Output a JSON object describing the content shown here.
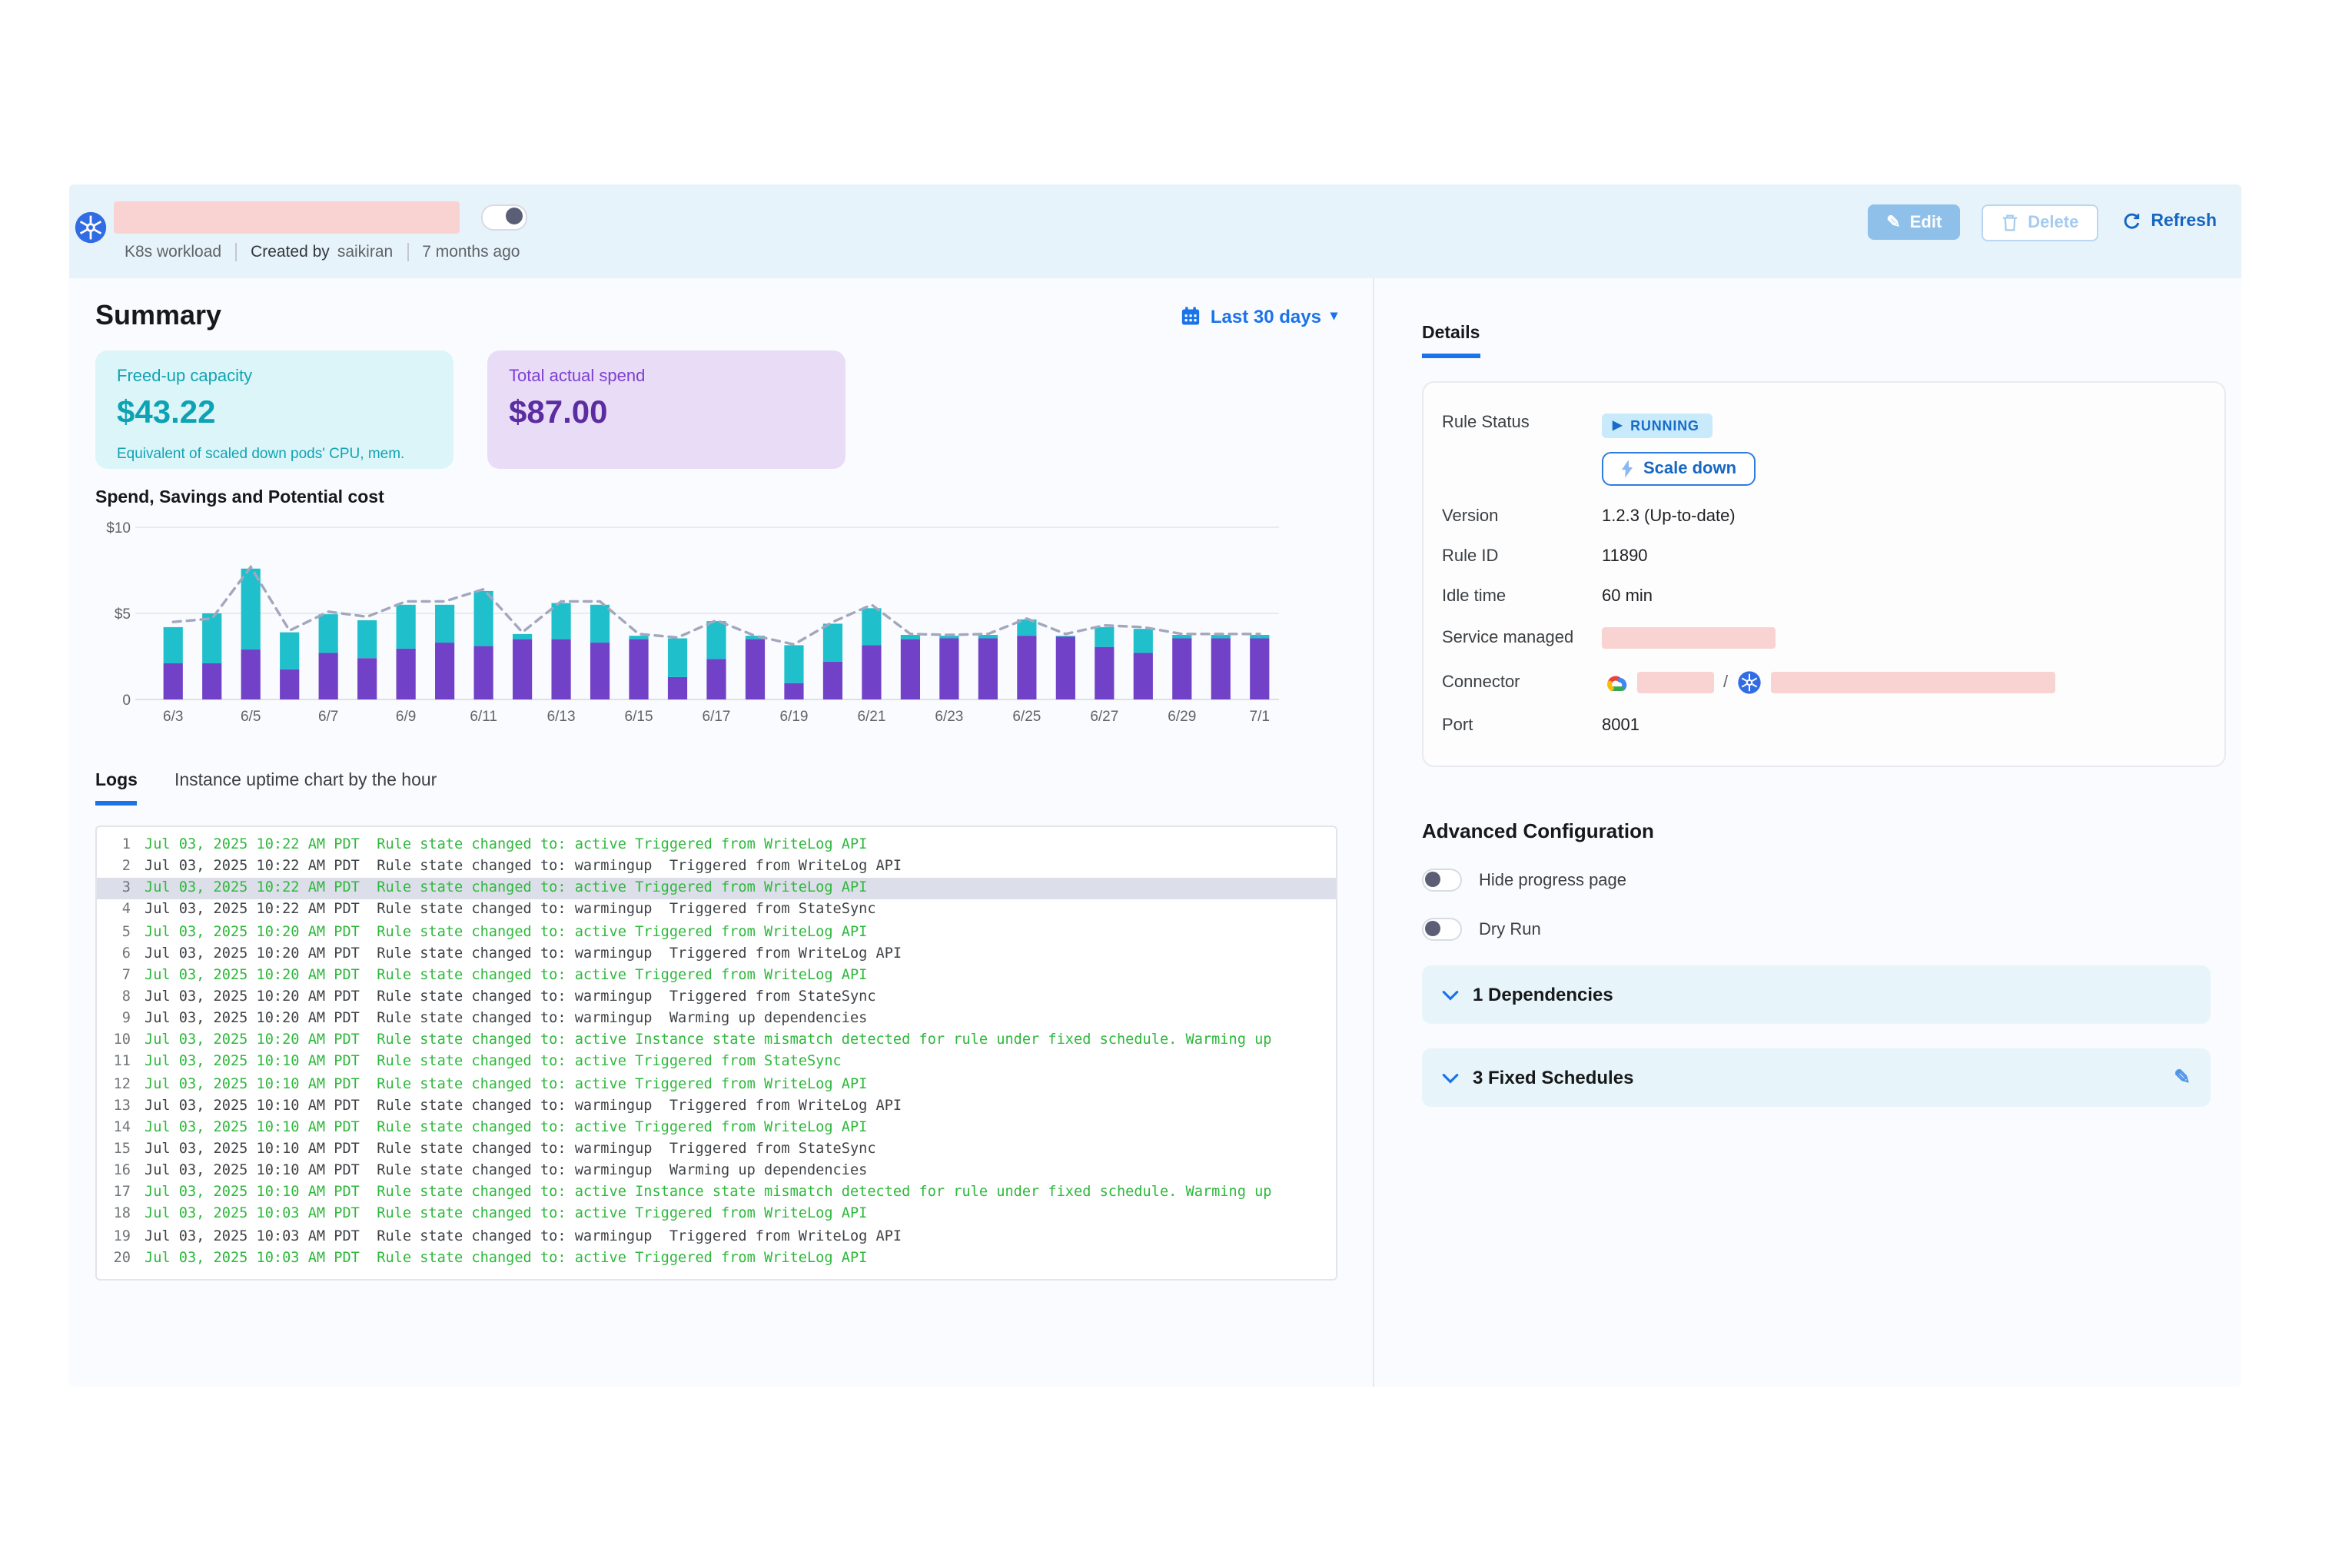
{
  "header": {
    "workload_type": "K8s workload",
    "created_by_label": "Created by",
    "created_by": "saikiran",
    "created_ago": "7 months ago",
    "edit_label": "Edit",
    "delete_label": "Delete",
    "refresh_label": "Refresh"
  },
  "summary": {
    "title": "Summary",
    "date_range": "Last 30 days",
    "cards": [
      {
        "label": "Freed-up capacity",
        "value": "$43.22",
        "caption": "Equivalent of scaled down pods' CPU, mem."
      },
      {
        "label": "Total actual spend",
        "value": "$87.00",
        "caption": ""
      }
    ]
  },
  "chart_data": {
    "type": "bar",
    "stacked": true,
    "title": "Spend, Savings and Potential cost",
    "categories": [
      "6/3",
      "6/4",
      "6/5",
      "6/6",
      "6/7",
      "6/8",
      "6/9",
      "6/10",
      "6/11",
      "6/12",
      "6/13",
      "6/14",
      "6/15",
      "6/16",
      "6/17",
      "6/18",
      "6/19",
      "6/20",
      "6/21",
      "6/22",
      "6/23",
      "6/24",
      "6/25",
      "6/26",
      "6/27",
      "6/28",
      "6/29",
      "6/30",
      "7/1"
    ],
    "x_tick_labels_shown": [
      "6/3",
      "6/5",
      "6/7",
      "6/9",
      "6/11",
      "6/13",
      "6/15",
      "6/17",
      "6/19",
      "6/21",
      "6/23",
      "6/25",
      "6/27",
      "6/29",
      "7/1"
    ],
    "series": [
      {
        "name": "Spend",
        "type": "bar",
        "color": "#7141c8",
        "values": [
          2.1,
          2.1,
          2.9,
          1.75,
          2.7,
          2.4,
          2.95,
          3.3,
          3.1,
          3.5,
          3.5,
          3.3,
          3.5,
          1.3,
          2.35,
          3.5,
          0.95,
          2.2,
          3.15,
          3.5,
          3.55,
          3.55,
          3.7,
          3.65,
          3.05,
          2.7,
          3.55,
          3.55,
          3.55
        ]
      },
      {
        "name": "Savings",
        "type": "bar",
        "color": "#1fc0cc",
        "values": [
          2.1,
          2.9,
          4.7,
          2.15,
          2.25,
          2.2,
          2.55,
          2.2,
          3.2,
          0.3,
          2.1,
          2.2,
          0.2,
          2.25,
          2.2,
          0.2,
          2.2,
          2.2,
          2.15,
          0.25,
          0.15,
          0.2,
          0.95,
          0.05,
          1.15,
          1.4,
          0.2,
          0.2,
          0.2
        ]
      },
      {
        "name": "Potential cost",
        "type": "line",
        "style": "dashed",
        "color": "#a3a7bd",
        "values": [
          4.5,
          4.7,
          7.7,
          4.0,
          5.1,
          4.8,
          5.7,
          5.7,
          6.4,
          3.9,
          5.7,
          5.7,
          3.8,
          3.6,
          4.6,
          3.7,
          3.2,
          4.5,
          5.5,
          3.8,
          3.75,
          3.8,
          4.7,
          3.8,
          4.3,
          4.2,
          3.8,
          3.8,
          3.8
        ]
      }
    ],
    "ylim": [
      0,
      10
    ],
    "y_ticks": [
      "0",
      "$5",
      "$10"
    ],
    "grid": true,
    "legend": "none"
  },
  "tabs": {
    "logs": "Logs",
    "uptime": "Instance uptime chart by the hour"
  },
  "logs": [
    {
      "n": 1,
      "state": "active",
      "highlighted": false,
      "text": "Jul 03, 2025 10:22 AM PDT  Rule state changed to: active Triggered from WriteLog API"
    },
    {
      "n": 2,
      "state": "warmingup",
      "highlighted": false,
      "text": "Jul 03, 2025 10:22 AM PDT  Rule state changed to: warmingup  Triggered from WriteLog API"
    },
    {
      "n": 3,
      "state": "active",
      "highlighted": true,
      "text": "Jul 03, 2025 10:22 AM PDT  Rule state changed to: active Triggered from WriteLog API"
    },
    {
      "n": 4,
      "state": "warmingup",
      "highlighted": false,
      "text": "Jul 03, 2025 10:22 AM PDT  Rule state changed to: warmingup  Triggered from StateSync"
    },
    {
      "n": 5,
      "state": "active",
      "highlighted": false,
      "text": "Jul 03, 2025 10:20 AM PDT  Rule state changed to: active Triggered from WriteLog API"
    },
    {
      "n": 6,
      "state": "warmingup",
      "highlighted": false,
      "text": "Jul 03, 2025 10:20 AM PDT  Rule state changed to: warmingup  Triggered from WriteLog API"
    },
    {
      "n": 7,
      "state": "active",
      "highlighted": false,
      "text": "Jul 03, 2025 10:20 AM PDT  Rule state changed to: active Triggered from WriteLog API"
    },
    {
      "n": 8,
      "state": "warmingup",
      "highlighted": false,
      "text": "Jul 03, 2025 10:20 AM PDT  Rule state changed to: warmingup  Triggered from StateSync"
    },
    {
      "n": 9,
      "state": "warmingup",
      "highlighted": false,
      "text": "Jul 03, 2025 10:20 AM PDT  Rule state changed to: warmingup  Warming up dependencies"
    },
    {
      "n": 10,
      "state": "active",
      "highlighted": false,
      "text": "Jul 03, 2025 10:20 AM PDT  Rule state changed to: active Instance state mismatch detected for rule under fixed schedule. Warming up"
    },
    {
      "n": 11,
      "state": "active",
      "highlighted": false,
      "text": "Jul 03, 2025 10:10 AM PDT  Rule state changed to: active Triggered from StateSync"
    },
    {
      "n": 12,
      "state": "active",
      "highlighted": false,
      "text": "Jul 03, 2025 10:10 AM PDT  Rule state changed to: active Triggered from WriteLog API"
    },
    {
      "n": 13,
      "state": "warmingup",
      "highlighted": false,
      "text": "Jul 03, 2025 10:10 AM PDT  Rule state changed to: warmingup  Triggered from WriteLog API"
    },
    {
      "n": 14,
      "state": "active",
      "highlighted": false,
      "text": "Jul 03, 2025 10:10 AM PDT  Rule state changed to: active Triggered from WriteLog API"
    },
    {
      "n": 15,
      "state": "warmingup",
      "highlighted": false,
      "text": "Jul 03, 2025 10:10 AM PDT  Rule state changed to: warmingup  Triggered from StateSync"
    },
    {
      "n": 16,
      "state": "warmingup",
      "highlighted": false,
      "text": "Jul 03, 2025 10:10 AM PDT  Rule state changed to: warmingup  Warming up dependencies"
    },
    {
      "n": 17,
      "state": "active",
      "highlighted": false,
      "text": "Jul 03, 2025 10:10 AM PDT  Rule state changed to: active Instance state mismatch detected for rule under fixed schedule. Warming up"
    },
    {
      "n": 18,
      "state": "active",
      "highlighted": false,
      "text": "Jul 03, 2025 10:03 AM PDT  Rule state changed to: active Triggered from WriteLog API"
    },
    {
      "n": 19,
      "state": "warmingup",
      "highlighted": false,
      "text": "Jul 03, 2025 10:03 AM PDT  Rule state changed to: warmingup  Triggered from WriteLog API"
    },
    {
      "n": 20,
      "state": "active",
      "highlighted": false,
      "text": "Jul 03, 2025 10:03 AM PDT  Rule state changed to: active Triggered from WriteLog API"
    }
  ],
  "details": {
    "tab": "Details",
    "rule_status_label": "Rule Status",
    "rule_status": "RUNNING",
    "scale_down_label": "Scale down",
    "version_label": "Version",
    "version": "1.2.3 (Up-to-date)",
    "rule_id_label": "Rule ID",
    "rule_id": "11890",
    "idle_label": "Idle time",
    "idle": "60 min",
    "service_label": "Service managed",
    "connector_label": "Connector",
    "connector_separator": "/",
    "port_label": "Port",
    "port": "8001"
  },
  "advanced": {
    "title": "Advanced Configuration",
    "toggles": [
      {
        "label": "Hide progress page",
        "on": false
      },
      {
        "label": "Dry Run",
        "on": false
      }
    ],
    "sections": [
      {
        "label": "1 Dependencies",
        "editable": false
      },
      {
        "label": "3 Fixed Schedules",
        "editable": true
      }
    ]
  },
  "colors": {
    "accent_blue": "#1a73e8",
    "spend_purple": "#7141c8",
    "savings_teal": "#1fc0cc",
    "potential_gray": "#a3a7bd",
    "log_green": "#2eb83c",
    "running_badge_bg": "#c8eafb",
    "header_band": "#e7f3fa",
    "redaction_pink": "#f8d3d2"
  }
}
